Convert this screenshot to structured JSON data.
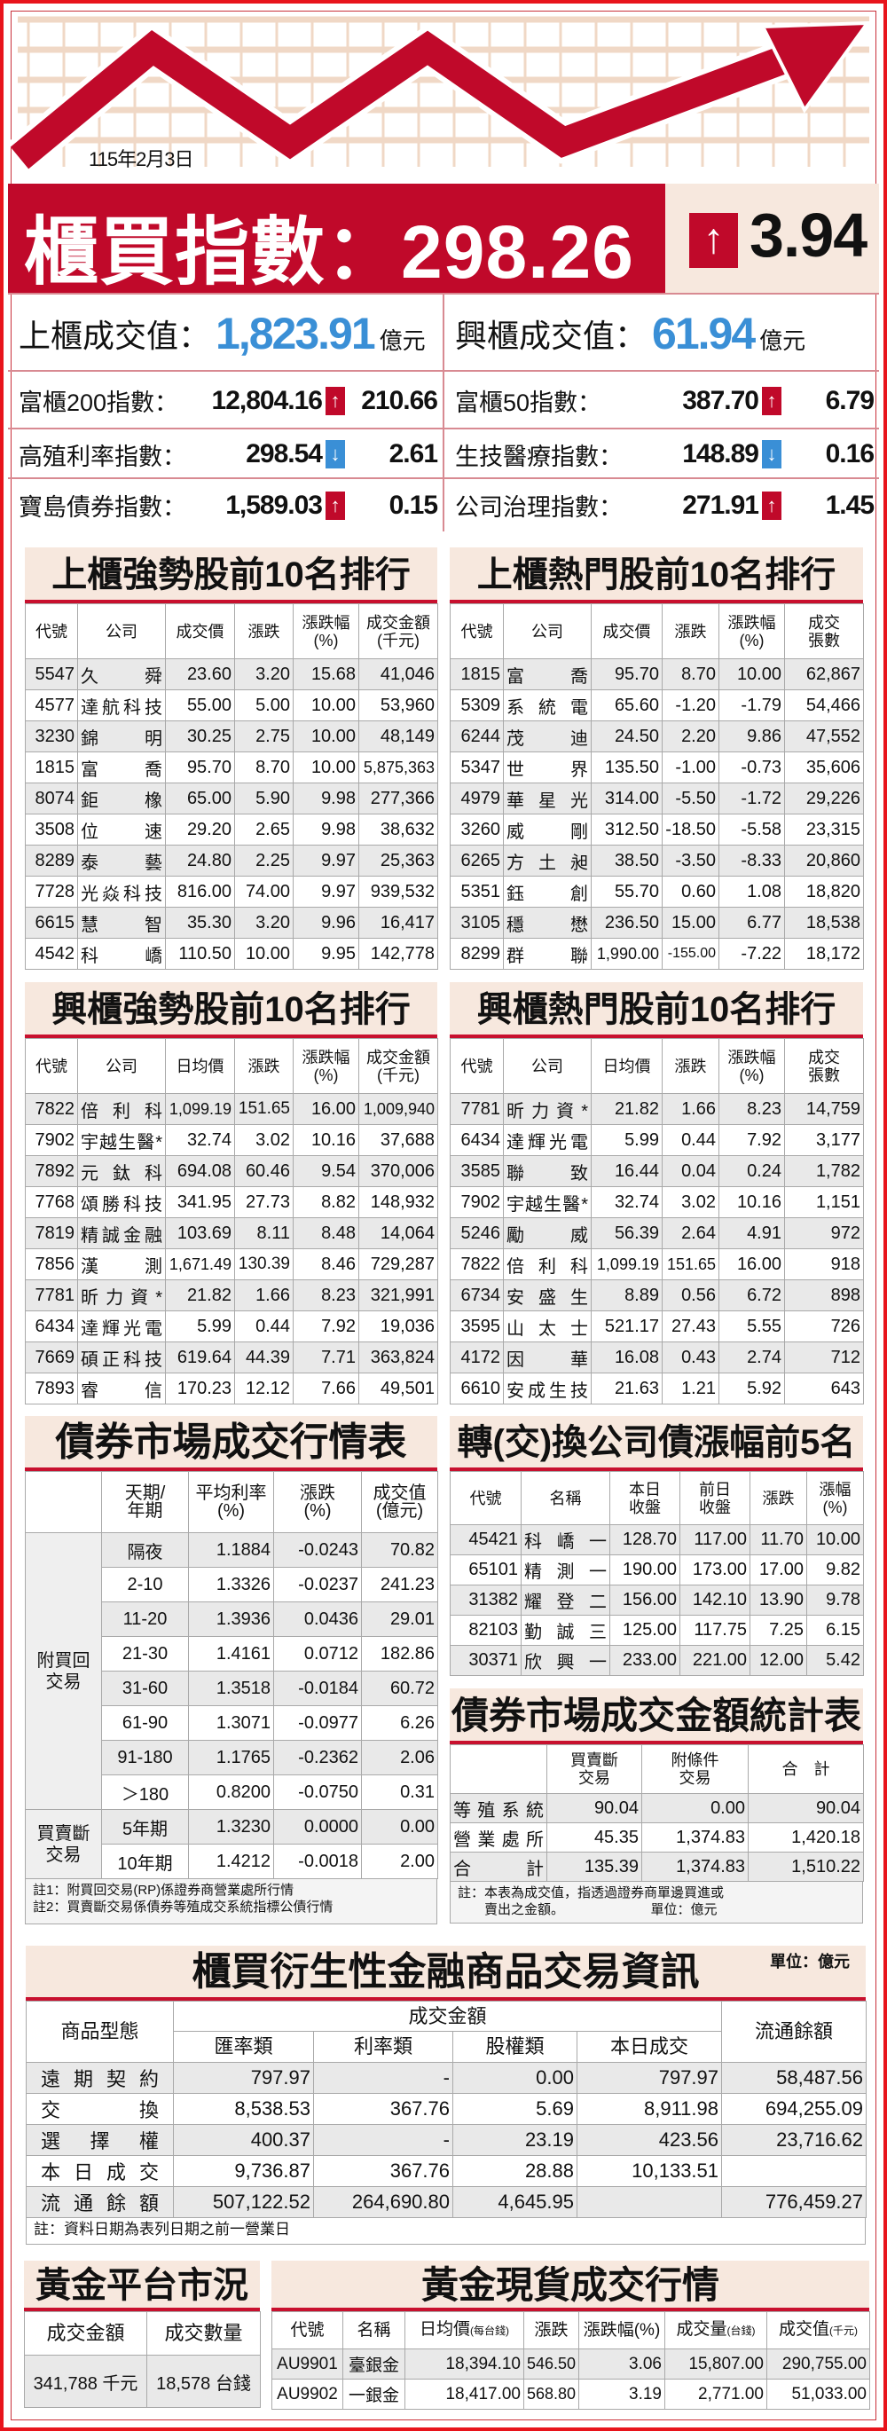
{
  "header": {
    "date": "115年2月3日",
    "index_label": "櫃買指數：",
    "index_value": "298.26",
    "index_direction": "up",
    "index_change": "3.94",
    "colors": {
      "red": "#c0092a",
      "blue": "#3a8fd6",
      "beige": "#f7e8de"
    }
  },
  "summary": [
    {
      "label": "上櫃成交值：",
      "value": "1,823.91",
      "unit": "億元"
    },
    {
      "label": "興櫃成交值：",
      "value": "61.94",
      "unit": "億元"
    }
  ],
  "indices": [
    {
      "label": "富櫃200指數：",
      "value": "12,804.16",
      "direction": "up",
      "change": "210.66"
    },
    {
      "label": "富櫃50指數：",
      "value": "387.70",
      "direction": "up",
      "change": "6.79"
    },
    {
      "label": "高殖利率指數：",
      "value": "298.54",
      "direction": "down",
      "change": "2.61"
    },
    {
      "label": "生技醫療指數：",
      "value": "148.89",
      "direction": "down",
      "change": "0.16"
    },
    {
      "label": "寶島債券指數：",
      "value": "1,589.03",
      "direction": "up",
      "change": "0.15"
    },
    {
      "label": "公司治理指數：",
      "value": "271.91",
      "direction": "up",
      "change": "1.45"
    }
  ],
  "otc_strong": {
    "title": "上櫃強勢股前10名排行",
    "headers": [
      "代號",
      "公司",
      "成交價",
      "漲跌",
      "漲跌幅\n(%)",
      "成交金額\n(千元)"
    ],
    "rows": [
      [
        "5547",
        "久舜",
        "23.60",
        "3.20",
        "15.68",
        "41,046"
      ],
      [
        "4577",
        "達航科技",
        "55.00",
        "5.00",
        "10.00",
        "53,960"
      ],
      [
        "3230",
        "錦明",
        "30.25",
        "2.75",
        "10.00",
        "48,149"
      ],
      [
        "1815",
        "富喬",
        "95.70",
        "8.70",
        "10.00",
        "5,875,363"
      ],
      [
        "8074",
        "鉅橡",
        "65.00",
        "5.90",
        "9.98",
        "277,366"
      ],
      [
        "3508",
        "位速",
        "29.20",
        "2.65",
        "9.98",
        "38,632"
      ],
      [
        "8289",
        "泰藝",
        "24.80",
        "2.25",
        "9.97",
        "25,363"
      ],
      [
        "7728",
        "光焱科技",
        "816.00",
        "74.00",
        "9.97",
        "939,532"
      ],
      [
        "6615",
        "慧智",
        "35.30",
        "3.20",
        "9.96",
        "16,417"
      ],
      [
        "4542",
        "科嶠",
        "110.50",
        "10.00",
        "9.95",
        "142,778"
      ]
    ]
  },
  "otc_hot": {
    "title": "上櫃熱門股前10名排行",
    "headers": [
      "代號",
      "公司",
      "成交價",
      "漲跌",
      "漲跌幅\n(%)",
      "成交\n張數"
    ],
    "rows": [
      [
        "1815",
        "富喬",
        "95.70",
        "8.70",
        "10.00",
        "62,867"
      ],
      [
        "5309",
        "系統電",
        "65.60",
        "-1.20",
        "-1.79",
        "54,466"
      ],
      [
        "6244",
        "茂迪",
        "24.50",
        "2.20",
        "9.86",
        "47,552"
      ],
      [
        "5347",
        "世界",
        "135.50",
        "-1.00",
        "-0.73",
        "35,606"
      ],
      [
        "4979",
        "華星光",
        "314.00",
        "-5.50",
        "-1.72",
        "29,226"
      ],
      [
        "3260",
        "威剛",
        "312.50",
        "-18.50",
        "-5.58",
        "23,315"
      ],
      [
        "6265",
        "方土昶",
        "38.50",
        "-3.50",
        "-8.33",
        "20,860"
      ],
      [
        "5351",
        "鈺創",
        "55.70",
        "0.60",
        "1.08",
        "18,820"
      ],
      [
        "3105",
        "穩懋",
        "236.50",
        "15.00",
        "6.77",
        "18,538"
      ],
      [
        "8299",
        "群聯",
        "1,990.00",
        "-155.00",
        "-7.22",
        "18,172"
      ]
    ]
  },
  "emerging_strong": {
    "title": "興櫃強勢股前10名排行",
    "headers": [
      "代號",
      "公司",
      "日均價",
      "漲跌",
      "漲跌幅\n(%)",
      "成交金額\n(千元)"
    ],
    "rows": [
      [
        "7822",
        "倍利科",
        "1,099.19",
        "151.65",
        "16.00",
        "1,009,940"
      ],
      [
        "7902",
        "宇越生醫*",
        "32.74",
        "3.02",
        "10.16",
        "37,688"
      ],
      [
        "7892",
        "元鈦科",
        "694.08",
        "60.46",
        "9.54",
        "370,006"
      ],
      [
        "7768",
        "頌勝科技",
        "341.95",
        "27.73",
        "8.82",
        "148,932"
      ],
      [
        "7819",
        "精誠金融",
        "103.69",
        "8.11",
        "8.48",
        "14,064"
      ],
      [
        "7856",
        "漢測",
        "1,671.49",
        "130.39",
        "8.46",
        "729,287"
      ],
      [
        "7781",
        "昕力資*",
        "21.82",
        "1.66",
        "8.23",
        "321,991"
      ],
      [
        "6434",
        "達輝光電",
        "5.99",
        "0.44",
        "7.92",
        "19,036"
      ],
      [
        "7669",
        "碩正科技",
        "619.64",
        "44.39",
        "7.71",
        "363,824"
      ],
      [
        "7893",
        "睿信",
        "170.23",
        "12.12",
        "7.66",
        "49,501"
      ]
    ]
  },
  "emerging_hot": {
    "title": "興櫃熱門股前10名排行",
    "headers": [
      "代號",
      "公司",
      "日均價",
      "漲跌",
      "漲跌幅\n(%)",
      "成交\n張數"
    ],
    "rows": [
      [
        "7781",
        "昕力資*",
        "21.82",
        "1.66",
        "8.23",
        "14,759"
      ],
      [
        "6434",
        "達輝光電",
        "5.99",
        "0.44",
        "7.92",
        "3,177"
      ],
      [
        "3585",
        "聯致",
        "16.44",
        "0.04",
        "0.24",
        "1,782"
      ],
      [
        "7902",
        "宇越生醫*",
        "32.74",
        "3.02",
        "10.16",
        "1,151"
      ],
      [
        "5246",
        "勵威",
        "56.39",
        "2.64",
        "4.91",
        "972"
      ],
      [
        "7822",
        "倍利科",
        "1,099.19",
        "151.65",
        "16.00",
        "918"
      ],
      [
        "6734",
        "安盛生",
        "8.89",
        "0.56",
        "6.72",
        "898"
      ],
      [
        "3595",
        "山太士",
        "521.17",
        "27.43",
        "5.55",
        "726"
      ],
      [
        "4172",
        "因華",
        "16.08",
        "0.43",
        "2.74",
        "712"
      ],
      [
        "6610",
        "安成生技",
        "21.63",
        "1.21",
        "5.92",
        "643"
      ]
    ]
  },
  "bond_market": {
    "title": "債券市場成交行情表",
    "headers": [
      "",
      "天期/\n年期",
      "平均利率\n(%)",
      "漲跌\n(%)",
      "成交值\n(億元)"
    ],
    "groups": [
      {
        "label": "附買回\n交易",
        "rows": [
          [
            "隔夜",
            "1.1884",
            "-0.0243",
            "70.82"
          ],
          [
            "2-10",
            "1.3326",
            "-0.0237",
            "241.23"
          ],
          [
            "11-20",
            "1.3936",
            "0.0436",
            "29.01"
          ],
          [
            "21-30",
            "1.4161",
            "0.0712",
            "182.86"
          ],
          [
            "31-60",
            "1.3518",
            "-0.0184",
            "60.72"
          ],
          [
            "61-90",
            "1.3071",
            "-0.0977",
            "6.26"
          ],
          [
            "91-180",
            "1.1765",
            "-0.2362",
            "2.06"
          ],
          [
            "＞180",
            "0.8200",
            "-0.0750",
            "0.31"
          ]
        ]
      },
      {
        "label": "買賣斷\n交易",
        "rows": [
          [
            "5年期",
            "1.3230",
            "0.0000",
            "0.00"
          ],
          [
            "10年期",
            "1.4212",
            "-0.0018",
            "2.00"
          ]
        ]
      }
    ],
    "notes": "註1：附買回交易(RP)係證券商營業處所行情\n註2：買賣斷交易係債券等殖成交系統指標公債行情"
  },
  "convertible_bonds": {
    "title": "轉(交)換公司債漲幅前5名",
    "headers": [
      "代號",
      "名稱",
      "本日\n收盤",
      "前日\n收盤",
      "漲跌",
      "漲幅\n(%)"
    ],
    "rows": [
      [
        "45421",
        "科嶠一",
        "128.70",
        "117.00",
        "11.70",
        "10.00"
      ],
      [
        "65101",
        "精測一",
        "190.00",
        "173.00",
        "17.00",
        "9.82"
      ],
      [
        "31382",
        "耀登二",
        "156.00",
        "142.10",
        "13.90",
        "9.78"
      ],
      [
        "82103",
        "勤誠三",
        "125.00",
        "117.75",
        "7.25",
        "6.15"
      ],
      [
        "30371",
        "欣興一",
        "233.00",
        "221.00",
        "12.00",
        "5.42"
      ]
    ]
  },
  "bond_stats": {
    "title": "債券市場成交金額統計表",
    "headers": [
      "",
      "買賣斷\n交易",
      "附條件\n交易",
      "合　計"
    ],
    "rows": [
      [
        "等殖系統",
        "90.04",
        "0.00",
        "90.04"
      ],
      [
        "營業處所",
        "45.35",
        "1,374.83",
        "1,420.18"
      ],
      [
        "合　計",
        "135.39",
        "1,374.83",
        "1,510.22"
      ]
    ],
    "note": "註：本表為成交值，指透過證券商單邊買進或\n　　賣出之金額。　　　　　　　單位：億元"
  },
  "derivatives": {
    "title": "櫃買衍生性金融商品交易資訊",
    "unit": "單位：億元",
    "header_type": "商品型態",
    "header_amount": "成交金額",
    "header_sub": [
      "匯率類",
      "利率類",
      "股權類",
      "本日成交"
    ],
    "header_outstanding": "流通餘額",
    "rows": [
      [
        "遠期契約",
        "797.97",
        "-",
        "0.00",
        "797.97",
        "58,487.56"
      ],
      [
        "交換",
        "8,538.53",
        "367.76",
        "5.69",
        "8,911.98",
        "694,255.09"
      ],
      [
        "選擇權",
        "400.37",
        "-",
        "23.19",
        "423.56",
        "23,716.62"
      ],
      [
        "本日成交",
        "9,736.87",
        "367.76",
        "28.88",
        "10,133.51",
        ""
      ],
      [
        "流通餘額",
        "507,122.52",
        "264,690.80",
        "4,645.95",
        "",
        "776,459.27"
      ]
    ],
    "note": "註：資料日期為表列日期之前一營業日"
  },
  "gold_platform": {
    "title": "黃金平台市況",
    "headers": [
      "成交金額",
      "成交數量"
    ],
    "rows": [
      [
        "341,788 千元",
        "18,578 台錢"
      ]
    ]
  },
  "gold_spot": {
    "title": "黃金現貨成交行情",
    "headers": [
      "代號",
      "名稱",
      {
        "text": "日均價",
        "sub": "(每台錢)"
      },
      "漲跌",
      "漲跌幅(%)",
      {
        "text": "成交量",
        "sub": "(台錢)"
      },
      {
        "text": "成交值",
        "sub": "(千元)"
      }
    ],
    "rows": [
      [
        "AU9901",
        "臺銀金",
        "18,394.10",
        "546.50",
        "3.06",
        "15,807.00",
        "290,755.00"
      ],
      [
        "AU9902",
        "一銀金",
        "18,417.00",
        "568.80",
        "3.19",
        "2,771.00",
        "51,033.00"
      ]
    ]
  }
}
